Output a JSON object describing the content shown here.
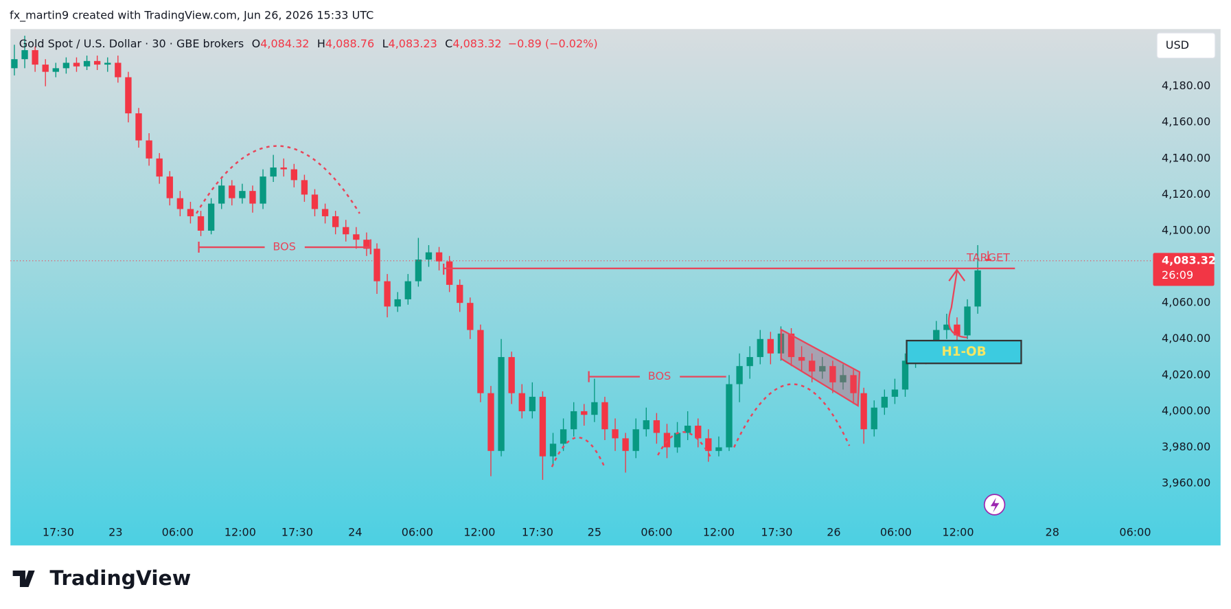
{
  "header": {
    "attribution": "fx_martin9 created with TradingView.com, Jun 26, 2026 15:33 UTC"
  },
  "chart_data": {
    "type": "candlestick",
    "title": "Gold Spot / U.S. Dollar · 30 · GBE brokers",
    "quote": [
      {
        "label": "O",
        "value": "4,084.32"
      },
      {
        "label": "H",
        "value": "4,088.76"
      },
      {
        "label": "L",
        "value": "4,083.23"
      },
      {
        "label": "C",
        "value": "4,083.32"
      }
    ],
    "change": "−0.89 (−0.02%)",
    "currency": "USD",
    "last_price_label": "4,083.32",
    "countdown": "26:09",
    "up_color": "#089981",
    "down_color": "#f23645",
    "ylim": [
      3938.7,
      4211.7
    ],
    "yticks": [
      {
        "value": 3960,
        "label": "3,960.00"
      },
      {
        "value": 3980,
        "label": "3,980.00"
      },
      {
        "value": 4000,
        "label": "4,000.00"
      },
      {
        "value": 4020,
        "label": "4,020.00"
      },
      {
        "value": 4040,
        "label": "4,040.00"
      },
      {
        "value": 4060,
        "label": "4,060.00"
      },
      {
        "value": 4080,
        "label": "4,080.00"
      },
      {
        "value": 4100,
        "label": "4,100.00"
      },
      {
        "value": 4120,
        "label": "4,120.00"
      },
      {
        "value": 4140,
        "label": "4,140.00"
      },
      {
        "value": 4160,
        "label": "4,160.00"
      },
      {
        "value": 4180,
        "label": "4,180.00"
      }
    ],
    "xlim": [
      -0.38,
      109.85
    ],
    "xticks": [
      {
        "value": 4.24,
        "label": "17:30"
      },
      {
        "value": 9.77,
        "label": "23"
      },
      {
        "value": 15.76,
        "label": "06:00"
      },
      {
        "value": 21.8,
        "label": "12:00"
      },
      {
        "value": 27.3,
        "label": "17:30"
      },
      {
        "value": 32.9,
        "label": "24"
      },
      {
        "value": 38.9,
        "label": "06:00"
      },
      {
        "value": 44.9,
        "label": "12:00"
      },
      {
        "value": 50.5,
        "label": "17:30"
      },
      {
        "value": 56,
        "label": "25"
      },
      {
        "value": 62,
        "label": "06:00"
      },
      {
        "value": 68,
        "label": "12:00"
      },
      {
        "value": 73.6,
        "label": "17:30"
      },
      {
        "value": 79.1,
        "label": "26"
      },
      {
        "value": 85.1,
        "label": "06:00"
      },
      {
        "value": 91.1,
        "label": "12:00"
      },
      {
        "value": 100.2,
        "label": "28"
      },
      {
        "value": 108.2,
        "label": "06:00"
      }
    ],
    "candles": [
      [
        4190,
        4203,
        4186,
        4195
      ],
      [
        4195,
        4208,
        4190,
        4200
      ],
      [
        4200,
        4202,
        4188,
        4192
      ],
      [
        4192,
        4195,
        4180,
        4188
      ],
      [
        4188,
        4193,
        4185,
        4190
      ],
      [
        4190,
        4196,
        4187,
        4193
      ],
      [
        4193,
        4196,
        4188,
        4191
      ],
      [
        4191,
        4197,
        4189,
        4194
      ],
      [
        4194,
        4197,
        4189,
        4192
      ],
      [
        4192,
        4196,
        4188,
        4193
      ],
      [
        4193,
        4197,
        4182,
        4185
      ],
      [
        4185,
        4188,
        4160,
        4165
      ],
      [
        4165,
        4168,
        4146,
        4150
      ],
      [
        4150,
        4154,
        4136,
        4140
      ],
      [
        4140,
        4143,
        4126,
        4130
      ],
      [
        4130,
        4133,
        4114,
        4118
      ],
      [
        4118,
        4122,
        4108,
        4112
      ],
      [
        4112,
        4116,
        4104,
        4108
      ],
      [
        4108,
        4111,
        4097,
        4100
      ],
      [
        4100,
        4118,
        4098,
        4115
      ],
      [
        4115,
        4130,
        4112,
        4125
      ],
      [
        4125,
        4128,
        4114,
        4118
      ],
      [
        4118,
        4126,
        4115,
        4122
      ],
      [
        4122,
        4125,
        4110,
        4115
      ],
      [
        4115,
        4134,
        4112,
        4130
      ],
      [
        4130,
        4142,
        4127,
        4135
      ],
      [
        4135,
        4140,
        4130,
        4134
      ],
      [
        4134,
        4137,
        4124,
        4128
      ],
      [
        4128,
        4131,
        4116,
        4120
      ],
      [
        4120,
        4123,
        4108,
        4112
      ],
      [
        4112,
        4115,
        4104,
        4108
      ],
      [
        4108,
        4111,
        4098,
        4102
      ],
      [
        4102,
        4106,
        4094,
        4098
      ],
      [
        4098,
        4102,
        4090,
        4095
      ],
      [
        4095,
        4099,
        4086,
        4090
      ],
      [
        4090,
        4093,
        4065,
        4072
      ],
      [
        4072,
        4076,
        4052,
        4058
      ],
      [
        4058,
        4066,
        4055,
        4062
      ],
      [
        4062,
        4076,
        4059,
        4072
      ],
      [
        4072,
        4096,
        4069,
        4084
      ],
      [
        4084,
        4092,
        4080,
        4088
      ],
      [
        4088,
        4091,
        4078,
        4083
      ],
      [
        4083,
        4086,
        4066,
        4070
      ],
      [
        4070,
        4073,
        4055,
        4060
      ],
      [
        4060,
        4063,
        4040,
        4045
      ],
      [
        4045,
        4048,
        4005,
        4010
      ],
      [
        4010,
        4014,
        3964,
        3978
      ],
      [
        3978,
        4040,
        3975,
        4030
      ],
      [
        4030,
        4033,
        4004,
        4010
      ],
      [
        4010,
        4015,
        3996,
        4000
      ],
      [
        4000,
        4016,
        3996,
        4008
      ],
      [
        4008,
        4011,
        3962,
        3975
      ],
      [
        3975,
        3988,
        3970,
        3982
      ],
      [
        3982,
        3996,
        3978,
        3990
      ],
      [
        3990,
        4005,
        3986,
        4000
      ],
      [
        4000,
        4004,
        3992,
        3998
      ],
      [
        3998,
        4018,
        3994,
        4005
      ],
      [
        4005,
        4008,
        3984,
        3990
      ],
      [
        3990,
        3996,
        3978,
        3985
      ],
      [
        3985,
        3988,
        3966,
        3978
      ],
      [
        3978,
        3996,
        3974,
        3990
      ],
      [
        3990,
        4002,
        3986,
        3995
      ],
      [
        3995,
        3999,
        3982,
        3988
      ],
      [
        3988,
        3993,
        3974,
        3980
      ],
      [
        3980,
        3994,
        3977,
        3988
      ],
      [
        3988,
        4000,
        3984,
        3992
      ],
      [
        3992,
        3996,
        3980,
        3985
      ],
      [
        3985,
        3990,
        3972,
        3978
      ],
      [
        3978,
        3986,
        3975,
        3980
      ],
      [
        3980,
        4020,
        3978,
        4015
      ],
      [
        4015,
        4032,
        4005,
        4025
      ],
      [
        4025,
        4036,
        4018,
        4030
      ],
      [
        4030,
        4045,
        4026,
        4040
      ],
      [
        4040,
        4044,
        4026,
        4032
      ],
      [
        4032,
        4047,
        4028,
        4043
      ],
      [
        4043,
        4046,
        4025,
        4030
      ],
      [
        4030,
        4036,
        4022,
        4028
      ],
      [
        4028,
        4032,
        4016,
        4022
      ],
      [
        4022,
        4030,
        4018,
        4025
      ],
      [
        4025,
        4028,
        4010,
        4016
      ],
      [
        4016,
        4026,
        4012,
        4020
      ],
      [
        4020,
        4023,
        4004,
        4010
      ],
      [
        4010,
        4013,
        3982,
        3990
      ],
      [
        3990,
        4006,
        3986,
        4002
      ],
      [
        4002,
        4012,
        3998,
        4008
      ],
      [
        4008,
        4018,
        4004,
        4012
      ],
      [
        4012,
        4032,
        4008,
        4028
      ],
      [
        4028,
        4036,
        4024,
        4032
      ],
      [
        4032,
        4036,
        4026,
        4030
      ],
      [
        4030,
        4050,
        4028,
        4045
      ],
      [
        4045,
        4054,
        4040,
        4048
      ],
      [
        4048,
        4052,
        4036,
        4042
      ],
      [
        4042,
        4062,
        4040,
        4058
      ],
      [
        4058,
        4092,
        4054,
        4078
      ],
      [
        4084.32,
        4088.76,
        4083.23,
        4083.32
      ]
    ],
    "annotations": {
      "bos": [
        "BOS",
        "BOS"
      ],
      "target": "TARGET",
      "order_block": "H1-OB"
    }
  },
  "footer": {
    "logo": "TradingView"
  }
}
